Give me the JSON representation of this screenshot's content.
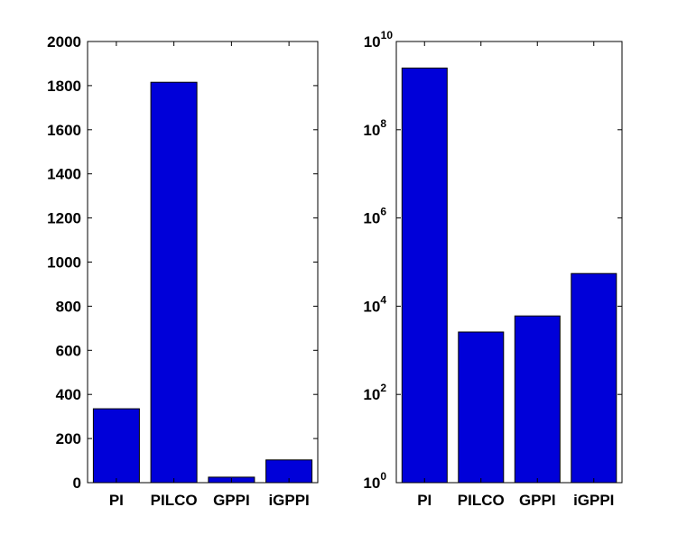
{
  "chart_data": [
    {
      "type": "bar",
      "categories": [
        "PI",
        "PILCO",
        "GPPI",
        "iGPPI"
      ],
      "values": [
        335,
        1815,
        25,
        103
      ],
      "ylim": [
        0,
        2000
      ],
      "yscale": "linear",
      "yticks": [
        0,
        200,
        400,
        600,
        800,
        1000,
        1200,
        1400,
        1600,
        1800,
        2000
      ],
      "grid": false,
      "bar_color": "#0000d9",
      "title": "",
      "xlabel": "",
      "ylabel": ""
    },
    {
      "type": "bar",
      "categories": [
        "PI",
        "PILCO",
        "GPPI",
        "iGPPI"
      ],
      "values": [
        2500000000,
        2600,
        6000,
        55000
      ],
      "ylim": [
        1,
        10000000000
      ],
      "yscale": "log",
      "yticks": [
        {
          "base": "10",
          "exp": "0"
        },
        {
          "base": "10",
          "exp": "2"
        },
        {
          "base": "10",
          "exp": "4"
        },
        {
          "base": "10",
          "exp": "6"
        },
        {
          "base": "10",
          "exp": "8"
        },
        {
          "base": "10",
          "exp": "10"
        }
      ],
      "grid": false,
      "bar_color": "#0000d9",
      "title": "",
      "xlabel": "",
      "ylabel": ""
    }
  ]
}
